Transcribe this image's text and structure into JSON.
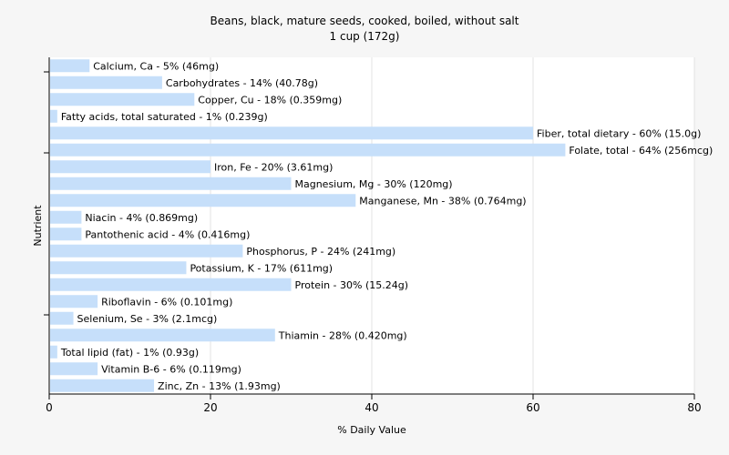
{
  "chart_data": {
    "type": "bar",
    "orientation": "horizontal",
    "title": "Beans, black, mature seeds, cooked, boiled, without salt",
    "subtitle": "1 cup (172g)",
    "xlabel": "% Daily Value",
    "ylabel": "Nutrient",
    "xlim": [
      0,
      80
    ],
    "xticks": [
      "0",
      "20",
      "40",
      "60",
      "80"
    ],
    "grid": true,
    "legend": "none",
    "bar_color": "#c6dffa",
    "categories": [
      "Calcium, Ca",
      "Carbohydrates",
      "Copper, Cu",
      "Fatty acids, total saturated",
      "Fiber, total dietary",
      "Folate, total",
      "Iron, Fe",
      "Magnesium, Mg",
      "Manganese, Mn",
      "Niacin",
      "Pantothenic acid",
      "Phosphorus, P",
      "Potassium, K",
      "Protein",
      "Riboflavin",
      "Selenium, Se",
      "Thiamin",
      "Total lipid (fat)",
      "Vitamin B-6",
      "Zinc, Zn"
    ],
    "values": [
      5,
      14,
      18,
      1,
      60,
      64,
      20,
      30,
      38,
      4,
      4,
      24,
      17,
      30,
      6,
      3,
      28,
      1,
      6,
      13
    ],
    "data_labels": [
      "Calcium, Ca - 5% (46mg)",
      "Carbohydrates - 14% (40.78g)",
      "Copper, Cu - 18% (0.359mg)",
      "Fatty acids, total saturated - 1% (0.239g)",
      "Fiber, total dietary - 60% (15.0g)",
      "Folate, total - 64% (256mcg)",
      "Iron, Fe - 20% (3.61mg)",
      "Magnesium, Mg - 30% (120mg)",
      "Manganese, Mn - 38% (0.764mg)",
      "Niacin - 4% (0.869mg)",
      "Pantothenic acid - 4% (0.416mg)",
      "Phosphorus, P - 24% (241mg)",
      "Potassium, K - 17% (611mg)",
      "Protein - 30% (15.24g)",
      "Riboflavin - 6% (0.101mg)",
      "Selenium, Se - 3% (2.1mcg)",
      "Thiamin - 28% (0.420mg)",
      "Total lipid (fat) - 1% (0.93g)",
      "Vitamin B-6 - 6% (0.119mg)",
      "Zinc, Zn - 13% (1.93mg)"
    ]
  }
}
